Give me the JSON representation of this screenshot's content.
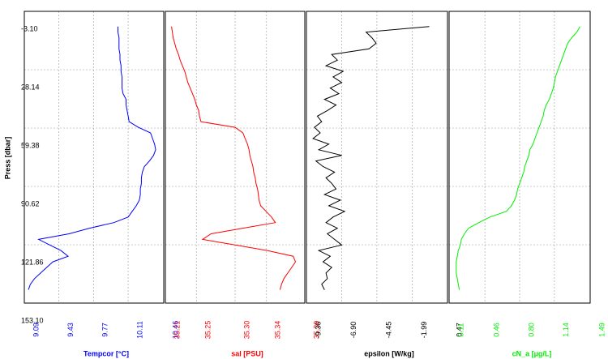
{
  "chart_data": {
    "type": "profile",
    "y_label": "Press [dbar]",
    "y": [
      5,
      8,
      11,
      14,
      17,
      20,
      23,
      26,
      29,
      32,
      35,
      38,
      41,
      44,
      47,
      50,
      53,
      56,
      59,
      62,
      65,
      68,
      71,
      74,
      77,
      80,
      83,
      86,
      89,
      92,
      95,
      98,
      101,
      104,
      107,
      110,
      113,
      116,
      119,
      122,
      125,
      128,
      131,
      134,
      137,
      140,
      143,
      146
    ],
    "ylim": [
      -3.1,
      153.1
    ],
    "yticks": [
      {
        "value": -3.1,
        "label": "-3.10"
      },
      28.14,
      59.38,
      90.62,
      121.86,
      {
        "value": 153.1,
        "label": "153.10"
      }
    ],
    "grid": true,
    "series": [
      {
        "name": "Tempcor [°C]",
        "color": "#0000ff",
        "xlim": [
          9.09,
          10.46
        ],
        "xticks": [
          9.09,
          9.43,
          9.77,
          10.11,
          10.46
        ],
        "values": [
          10.01,
          10.01,
          10.02,
          10.02,
          10.02,
          10.03,
          10.03,
          10.04,
          10.04,
          10.05,
          10.05,
          10.05,
          10.06,
          10.09,
          10.09,
          10.1,
          10.11,
          10.12,
          10.21,
          10.33,
          10.35,
          10.37,
          10.38,
          10.36,
          10.32,
          10.27,
          10.25,
          10.24,
          10.24,
          10.23,
          10.23,
          10.22,
          10.19,
          10.15,
          10.11,
          9.97,
          9.73,
          9.53,
          9.23,
          9.34,
          9.45,
          9.52,
          9.37,
          9.31,
          9.25,
          9.19,
          9.15,
          9.13
        ]
      },
      {
        "name": "sal [PSU]",
        "color": "#ff0000",
        "xlim": [
          35.21,
          35.39
        ],
        "xticks": [
          35.21,
          35.25,
          {
            "value": 35.3,
            "label": "35.30"
          },
          35.34,
          35.39
        ],
        "values": [
          35.218,
          35.219,
          35.22,
          35.222,
          35.224,
          35.227,
          35.229,
          35.232,
          35.235,
          35.237,
          35.239,
          35.242,
          35.245,
          35.248,
          35.25,
          35.253,
          35.254,
          35.256,
          35.3,
          35.31,
          35.313,
          35.316,
          35.318,
          35.319,
          35.321,
          35.323,
          35.324,
          35.326,
          35.327,
          35.329,
          35.33,
          35.331,
          35.333,
          35.34,
          35.347,
          35.352,
          35.31,
          35.269,
          35.258,
          35.3,
          35.342,
          35.375,
          35.378,
          35.373,
          35.368,
          35.363,
          35.36,
          35.358
        ]
      },
      {
        "name": "epsilon [W/kg]",
        "color": "#000000",
        "xlim": [
          -9.36,
          0.47
        ],
        "xticks": [
          -9.36,
          {
            "value": -6.9,
            "label": "-6.90"
          },
          -4.45,
          -1.99,
          0.47
        ],
        "values": [
          -0.8,
          -5.2,
          -4.8,
          -4.5,
          -5.0,
          -7.6,
          -7.2,
          -8.0,
          -6.8,
          -7.5,
          -6.9,
          -7.7,
          -7.1,
          -8.1,
          -7.3,
          -7.9,
          -8.6,
          -8.3,
          -8.8,
          -8.4,
          -8.9,
          -7.8,
          -8.5,
          -6.9,
          -8.7,
          -8.2,
          -7.4,
          -8.0,
          -7.6,
          -7.3,
          -8.1,
          -7.0,
          -7.8,
          -6.7,
          -7.5,
          -8.0,
          -7.2,
          -7.9,
          -7.4,
          -6.9,
          -8.5,
          -7.7,
          -8.2,
          -7.6,
          -8.0,
          -7.9,
          -8.3,
          -8.1
        ]
      },
      {
        "name": "cN_a [µg/L]",
        "color": "#00ee00",
        "xlim": [
          0.11,
          1.49
        ],
        "xticks": [
          0.11,
          0.46,
          {
            "value": 0.8,
            "label": "0.80"
          },
          1.14,
          1.49
        ],
        "values": [
          1.39,
          1.36,
          1.31,
          1.27,
          1.25,
          1.23,
          1.21,
          1.19,
          1.17,
          1.15,
          1.14,
          1.13,
          1.11,
          1.09,
          1.06,
          1.04,
          1.03,
          1.01,
          0.99,
          0.97,
          0.95,
          0.93,
          0.9,
          0.89,
          0.87,
          0.85,
          0.84,
          0.82,
          0.8,
          0.78,
          0.77,
          0.75,
          0.72,
          0.67,
          0.51,
          0.4,
          0.3,
          0.26,
          0.23,
          0.22,
          0.2,
          0.19,
          0.18,
          0.18,
          0.18,
          0.19,
          0.2,
          0.21
        ]
      }
    ]
  }
}
